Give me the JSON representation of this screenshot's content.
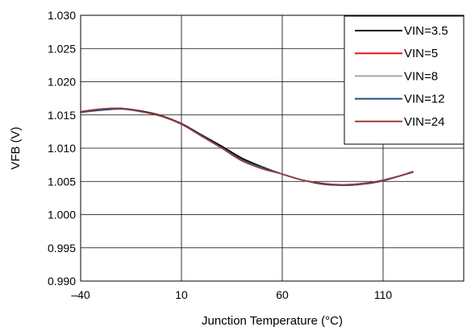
{
  "chart_data": {
    "type": "line",
    "title": "",
    "xlabel": "Junction Temperature (°C)",
    "ylabel": "VFB (V)",
    "xlim": [
      -40,
      150
    ],
    "ylim": [
      0.99,
      1.03
    ],
    "xticks": [
      -40,
      10,
      60,
      110
    ],
    "xtick_labels": [
      "–40",
      "10",
      "60",
      "110"
    ],
    "yticks": [
      0.99,
      0.995,
      1.0,
      1.005,
      1.01,
      1.015,
      1.02,
      1.025,
      1.03
    ],
    "ytick_labels": [
      "0.990",
      "0.995",
      "1.000",
      "1.005",
      "1.010",
      "1.015",
      "1.020",
      "1.025",
      "1.030"
    ],
    "grid": true,
    "legend_position": "top-right",
    "series": [
      {
        "name": "VIN=3.5",
        "color": "#000000",
        "x": [
          -40,
          -30,
          -20,
          -10,
          0,
          10,
          20,
          30,
          40,
          50,
          60,
          70,
          80,
          90,
          100,
          110,
          125
        ],
        "y": [
          1.0154,
          1.0158,
          1.016,
          1.0156,
          1.0149,
          1.0137,
          1.012,
          1.0103,
          1.0085,
          1.0072,
          1.0061,
          1.0052,
          1.0046,
          1.0044,
          1.0046,
          1.0051,
          1.0064
        ]
      },
      {
        "name": "VIN=5",
        "color": "#e8141c",
        "x": [
          -40,
          -30,
          -20,
          -10,
          0,
          10,
          20,
          30,
          40,
          50,
          60,
          70,
          80,
          90,
          100,
          110,
          125
        ],
        "y": [
          1.0155,
          1.0159,
          1.016,
          1.0155,
          1.0148,
          1.0136,
          1.0119,
          1.01,
          1.0081,
          1.007,
          1.0061,
          1.0052,
          1.0047,
          1.0045,
          1.0047,
          1.0052,
          1.0064
        ]
      },
      {
        "name": "VIN=8",
        "color": "#a6a6a6",
        "x": [
          -40,
          -30,
          -20,
          -10,
          0,
          10,
          20,
          30,
          40,
          50,
          60,
          70,
          80,
          90,
          100,
          110,
          125
        ],
        "y": [
          1.0154,
          1.0158,
          1.0159,
          1.0155,
          1.0148,
          1.0136,
          1.0118,
          1.01,
          1.0082,
          1.007,
          1.0061,
          1.0052,
          1.0047,
          1.0044,
          1.0046,
          1.0051,
          1.0065
        ]
      },
      {
        "name": "VIN=12",
        "color": "#1f4e79",
        "x": [
          -40,
          -30,
          -20,
          -10,
          0,
          10,
          20,
          30,
          40,
          50,
          60,
          70,
          80,
          90,
          100,
          110,
          125
        ],
        "y": [
          1.0154,
          1.0157,
          1.0159,
          1.0155,
          1.0148,
          1.0136,
          1.0119,
          1.0101,
          1.0083,
          1.0071,
          1.0061,
          1.0052,
          1.0047,
          1.0044,
          1.0046,
          1.0051,
          1.0065
        ]
      },
      {
        "name": "VIN=24",
        "color": "#a5393f",
        "x": [
          -40,
          -30,
          -20,
          -10,
          0,
          10,
          20,
          30,
          40,
          50,
          60,
          70,
          80,
          90,
          100,
          110,
          125
        ],
        "y": [
          1.0155,
          1.0159,
          1.016,
          1.0155,
          1.0148,
          1.0136,
          1.0118,
          1.01,
          1.0081,
          1.0069,
          1.0061,
          1.0052,
          1.0047,
          1.0045,
          1.0047,
          1.0052,
          1.0064
        ]
      }
    ]
  }
}
